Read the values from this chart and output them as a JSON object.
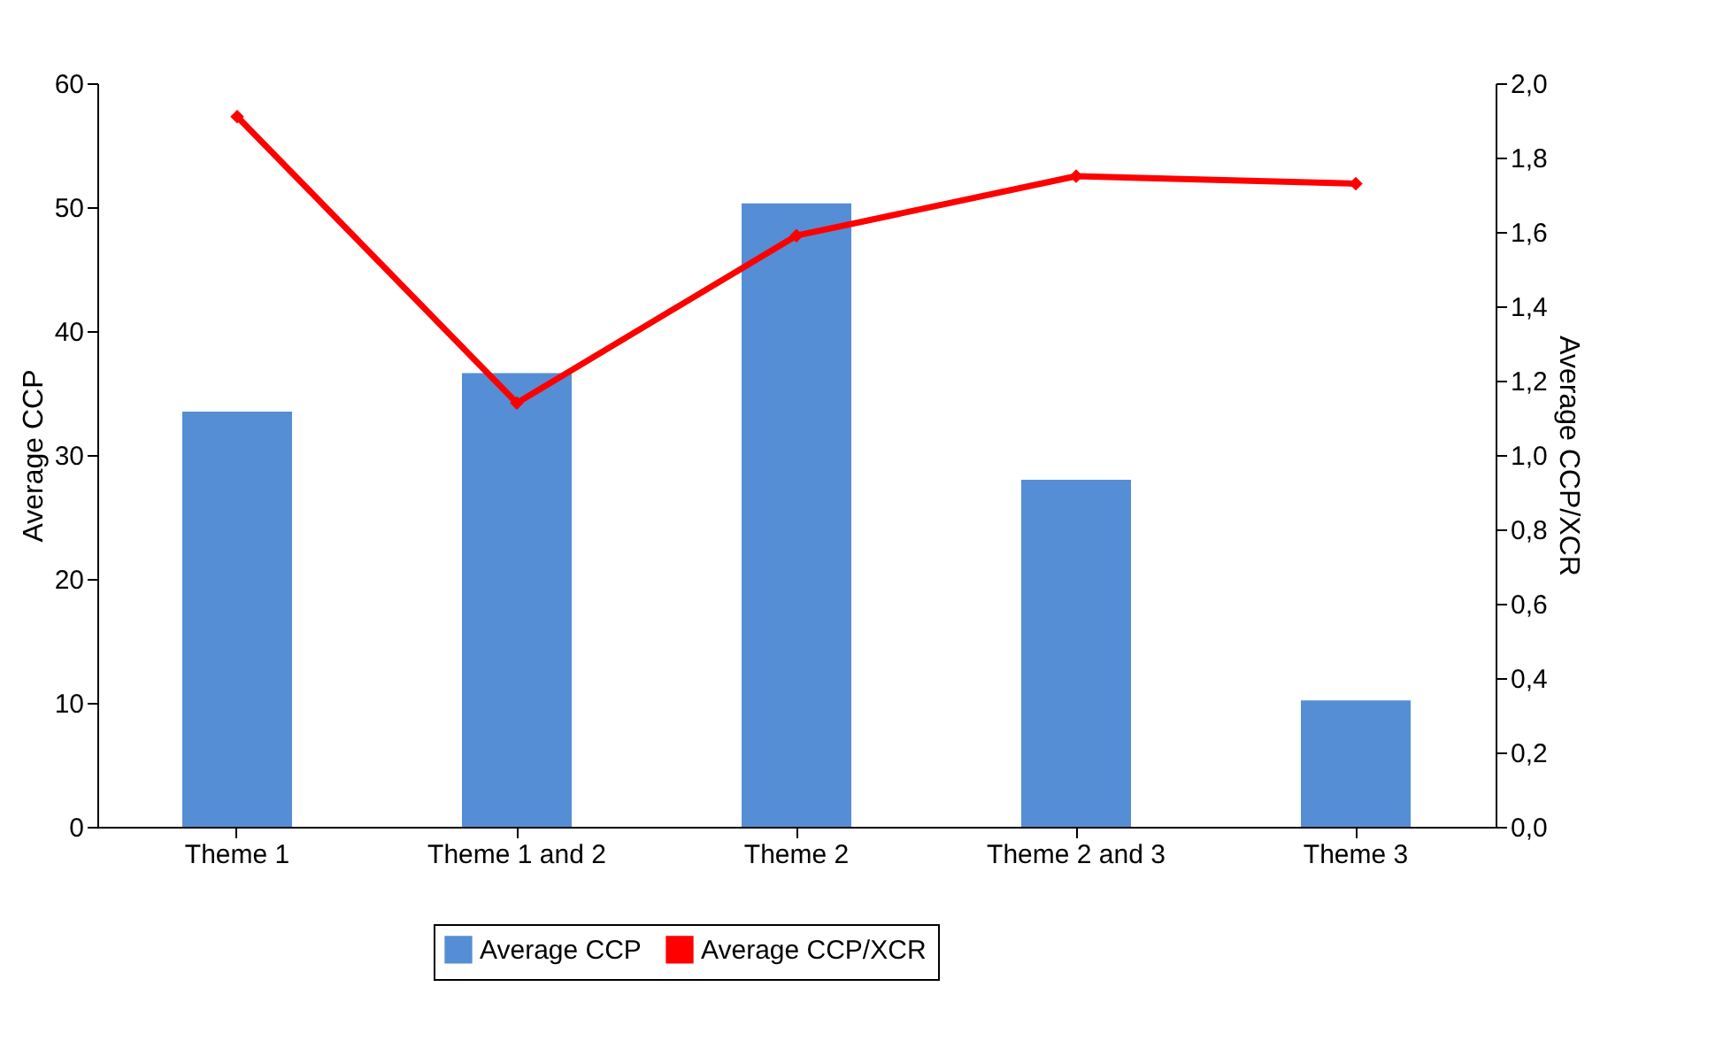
{
  "chart_data": {
    "type": "bar",
    "ylabel": "Average CCP",
    "y2label": "Average CCP/XCR",
    "categories": [
      "Theme 1",
      "Theme 1 and 2",
      "Theme 2",
      "Theme 2 and 3",
      "Theme 3"
    ],
    "series": [
      {
        "name": "Average CCP",
        "color": "#558ed5",
        "values": [
          33.5,
          36.6,
          50.3,
          28.0,
          10.2
        ]
      },
      {
        "name": "Average CCP/XCR",
        "type": "line",
        "axis": "y2",
        "color": "#ff0000",
        "marker": "diamond",
        "values": [
          1.91,
          1.14,
          1.59,
          1.75,
          1.73
        ]
      }
    ],
    "ylim": [
      0,
      60
    ],
    "yticks": [
      0,
      10,
      20,
      30,
      40,
      50,
      60
    ],
    "y2lim": [
      0,
      2
    ],
    "y2ticks": [
      {
        "value": 0,
        "label": "0,0"
      },
      {
        "value": 0.2,
        "label": "0,2"
      },
      {
        "value": 0.4,
        "label": "0,4"
      },
      {
        "value": 0.6,
        "label": "0,6"
      },
      {
        "value": 0.8,
        "label": "0,8"
      },
      {
        "value": 1,
        "label": "1,0"
      },
      {
        "value": 1.2,
        "label": "1,2"
      },
      {
        "value": 1.4,
        "label": "1,4"
      },
      {
        "value": 1.6,
        "label": "1,6"
      },
      {
        "value": 1.8,
        "label": "1,8"
      },
      {
        "value": 2,
        "label": "2,0"
      }
    ],
    "grid": false,
    "legend": "bottom"
  }
}
